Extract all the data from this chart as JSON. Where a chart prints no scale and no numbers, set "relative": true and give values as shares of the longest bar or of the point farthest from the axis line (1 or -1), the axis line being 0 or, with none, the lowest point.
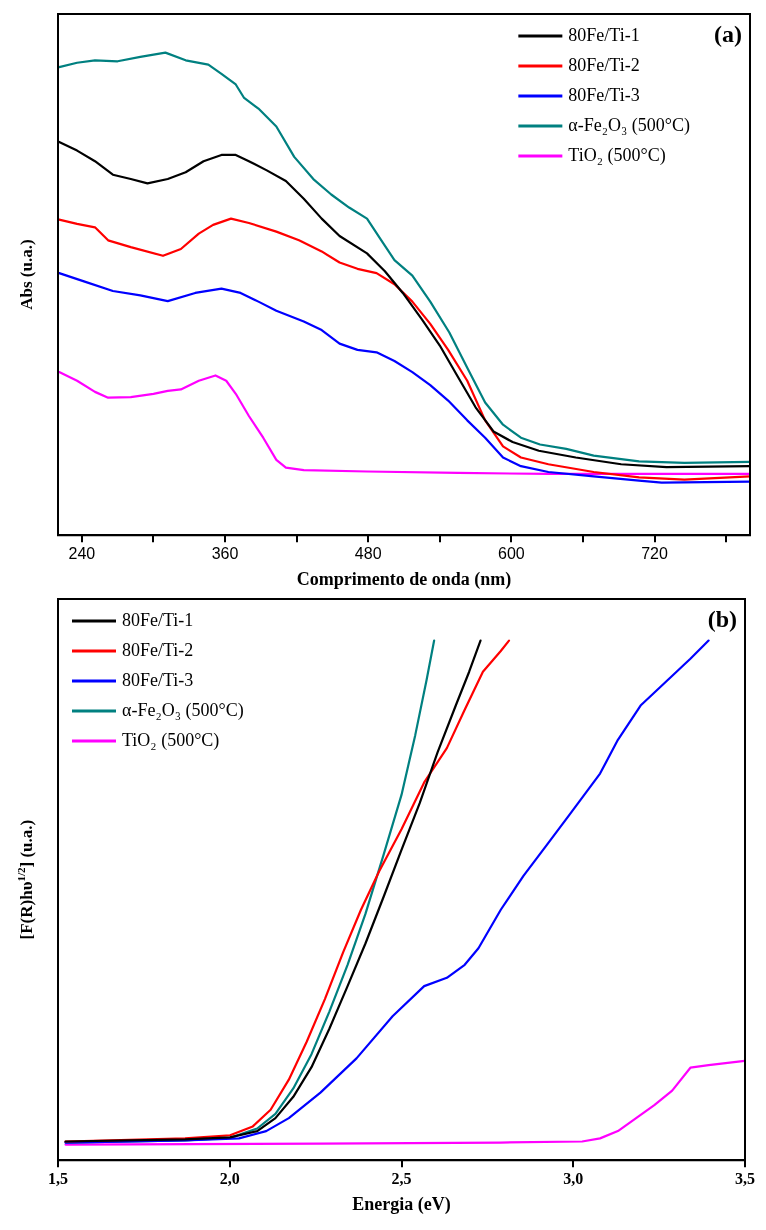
{
  "chart_data": [
    {
      "type": "line",
      "xlabel": "Comprimento de onda (nm)",
      "ylabel": "Abs (u.a.)",
      "xlim": [
        220,
        800
      ],
      "xticks": [
        240,
        {
          "value": 300,
          "label": null
        },
        360,
        {
          "value": 420,
          "label": null
        },
        480,
        {
          "value": 540,
          "label": null
        },
        600,
        {
          "value": 660,
          "label": null
        },
        720,
        {
          "value": 780,
          "label": null
        }
      ],
      "relative": true,
      "tick_labels": "x",
      "legend": "top right",
      "annotations": [
        "(a)"
      ],
      "series": [
        {
          "name": "80Fe/Ti-1",
          "color": "#000000",
          "x": [
            221,
            236,
            251,
            266,
            281,
            295,
            312,
            327,
            342,
            357,
            369,
            380,
            395,
            411,
            426,
            441,
            456,
            479,
            494,
            509,
            525,
            540,
            555,
            570,
            585,
            601,
            623,
            654,
            692,
            730,
            800
          ],
          "values": [
            0.815,
            0.797,
            0.775,
            0.747,
            0.738,
            0.729,
            0.738,
            0.752,
            0.775,
            0.788,
            0.788,
            0.775,
            0.756,
            0.734,
            0.697,
            0.656,
            0.62,
            0.584,
            0.547,
            0.502,
            0.447,
            0.393,
            0.329,
            0.265,
            0.215,
            0.193,
            0.175,
            0.161,
            0.147,
            0.141,
            0.143
          ]
        },
        {
          "name": "80Fe/Ti-2",
          "color": "#ff0000",
          "x": [
            221,
            236,
            251,
            262,
            281,
            308,
            323,
            338,
            350,
            365,
            380,
            403,
            422,
            441,
            456,
            471,
            487,
            502,
            517,
            532,
            547,
            563,
            578,
            593,
            608,
            631,
            669,
            707,
            745,
            800
          ],
          "values": [
            0.654,
            0.645,
            0.638,
            0.611,
            0.597,
            0.579,
            0.593,
            0.625,
            0.643,
            0.656,
            0.647,
            0.629,
            0.611,
            0.588,
            0.565,
            0.552,
            0.543,
            0.52,
            0.484,
            0.438,
            0.384,
            0.32,
            0.238,
            0.184,
            0.161,
            0.147,
            0.131,
            0.12,
            0.115,
            0.122
          ]
        },
        {
          "name": "80Fe/Ti-3",
          "color": "#0000ff",
          "x": [
            221,
            243,
            266,
            289,
            312,
            335,
            357,
            373,
            388,
            403,
            426,
            441,
            456,
            471,
            487,
            502,
            517,
            532,
            547,
            563,
            578,
            593,
            608,
            631,
            669,
            707,
            726,
            800
          ],
          "values": [
            0.543,
            0.525,
            0.506,
            0.497,
            0.485,
            0.502,
            0.511,
            0.502,
            0.484,
            0.465,
            0.443,
            0.425,
            0.397,
            0.384,
            0.379,
            0.361,
            0.338,
            0.311,
            0.279,
            0.238,
            0.202,
            0.161,
            0.143,
            0.131,
            0.122,
            0.113,
            0.109,
            0.111
          ]
        },
        {
          "name": "α-Fe₂O₃ (500°C)",
          "color": "#008080",
          "x": [
            221,
            236,
            251,
            270,
            289,
            310,
            327,
            346,
            357,
            369,
            376,
            388,
            403,
            418,
            434,
            449,
            464,
            479,
            491,
            502,
            517,
            532,
            548,
            563,
            578,
            593,
            608,
            624,
            646,
            669,
            707,
            745,
            800
          ],
          "values": [
            0.97,
            0.979,
            0.984,
            0.982,
            0.991,
            1.0,
            0.984,
            0.975,
            0.956,
            0.934,
            0.906,
            0.884,
            0.847,
            0.784,
            0.738,
            0.706,
            0.679,
            0.656,
            0.611,
            0.57,
            0.538,
            0.484,
            0.42,
            0.347,
            0.275,
            0.229,
            0.202,
            0.188,
            0.179,
            0.165,
            0.153,
            0.15,
            0.152
          ]
        },
        {
          "name": "TiO₂ (500°C)",
          "color": "#ff00ff",
          "x": [
            221,
            236,
            251,
            262,
            281,
            300,
            312,
            323,
            338,
            352,
            361,
            369,
            380,
            392,
            403,
            411,
            426,
            479,
            555,
            631,
            800
          ],
          "values": [
            0.338,
            0.32,
            0.297,
            0.285,
            0.286,
            0.293,
            0.299,
            0.302,
            0.32,
            0.331,
            0.32,
            0.293,
            0.247,
            0.202,
            0.156,
            0.14,
            0.135,
            0.132,
            0.129,
            0.127,
            0.127
          ]
        }
      ]
    },
    {
      "type": "line",
      "xlabel": "Energia (eV)",
      "ylabel": "[F(R)hυ$^{1/2}$] (u.a.)",
      "xlim": [
        1.5,
        3.5
      ],
      "xticks": [
        {
          "value": 1.5,
          "label": "1,5"
        },
        {
          "value": 2.0,
          "label": "2,0"
        },
        {
          "value": 2.5,
          "label": "2,5"
        },
        {
          "value": 3.0,
          "label": "3,0"
        },
        {
          "value": 3.5,
          "label": "3,5"
        }
      ],
      "relative": true,
      "tick_labels": "x",
      "legend": "top left",
      "annotations": [
        "(b)"
      ],
      "series": [
        {
          "name": "80Fe/Ti-1",
          "color": "#000000",
          "x": [
            1.522,
            1.87,
            2.001,
            2.08,
            2.133,
            2.185,
            2.238,
            2.29,
            2.343,
            2.395,
            2.448,
            2.5,
            2.553,
            2.605,
            2.658,
            2.697,
            2.73
          ],
          "values": [
            0.036,
            0.04,
            0.044,
            0.056,
            0.081,
            0.122,
            0.179,
            0.253,
            0.335,
            0.417,
            0.507,
            0.597,
            0.687,
            0.785,
            0.875,
            0.94,
            1.0
          ]
        },
        {
          "name": "80Fe/Ti-2",
          "color": "#ff0000",
          "x": [
            1.522,
            1.87,
            2.001,
            2.067,
            2.119,
            2.172,
            2.224,
            2.277,
            2.33,
            2.382,
            2.435,
            2.5,
            2.566,
            2.632,
            2.684,
            2.737,
            2.789,
            2.813
          ],
          "values": [
            0.036,
            0.042,
            0.048,
            0.065,
            0.097,
            0.155,
            0.228,
            0.31,
            0.4,
            0.482,
            0.556,
            0.637,
            0.727,
            0.793,
            0.867,
            0.94,
            0.98,
            1.0
          ]
        },
        {
          "name": "80Fe/Ti-3",
          "color": "#0000ff",
          "x": [
            1.522,
            1.87,
            2.027,
            2.106,
            2.172,
            2.264,
            2.369,
            2.474,
            2.566,
            2.632,
            2.684,
            2.724,
            2.789,
            2.855,
            2.921,
            2.986,
            3.078,
            3.13,
            3.196,
            3.262,
            3.341,
            3.394
          ],
          "values": [
            0.034,
            0.038,
            0.042,
            0.056,
            0.081,
            0.13,
            0.196,
            0.277,
            0.335,
            0.351,
            0.376,
            0.408,
            0.482,
            0.547,
            0.605,
            0.662,
            0.744,
            0.809,
            0.875,
            0.916,
            0.965,
            1.0
          ]
        },
        {
          "name": "α-Fe₂O₃ (500°C)",
          "color": "#008080",
          "x": [
            1.522,
            1.87,
            2.001,
            2.08,
            2.133,
            2.185,
            2.238,
            2.29,
            2.343,
            2.395,
            2.448,
            2.5,
            2.54,
            2.573,
            2.595
          ],
          "values": [
            0.034,
            0.038,
            0.043,
            0.061,
            0.089,
            0.138,
            0.204,
            0.286,
            0.376,
            0.474,
            0.588,
            0.703,
            0.818,
            0.924,
            1.0
          ]
        },
        {
          "name": "TiO₂ (500°C)",
          "color": "#ff00ff",
          "x": [
            1.522,
            2.264,
            2.789,
            3.026,
            3.078,
            3.13,
            3.183,
            3.236,
            3.288,
            3.341,
            3.394,
            3.499
          ],
          "values": [
            0.03,
            0.032,
            0.034,
            0.036,
            0.042,
            0.056,
            0.081,
            0.106,
            0.134,
            0.178,
            0.183,
            0.191
          ]
        }
      ]
    }
  ]
}
